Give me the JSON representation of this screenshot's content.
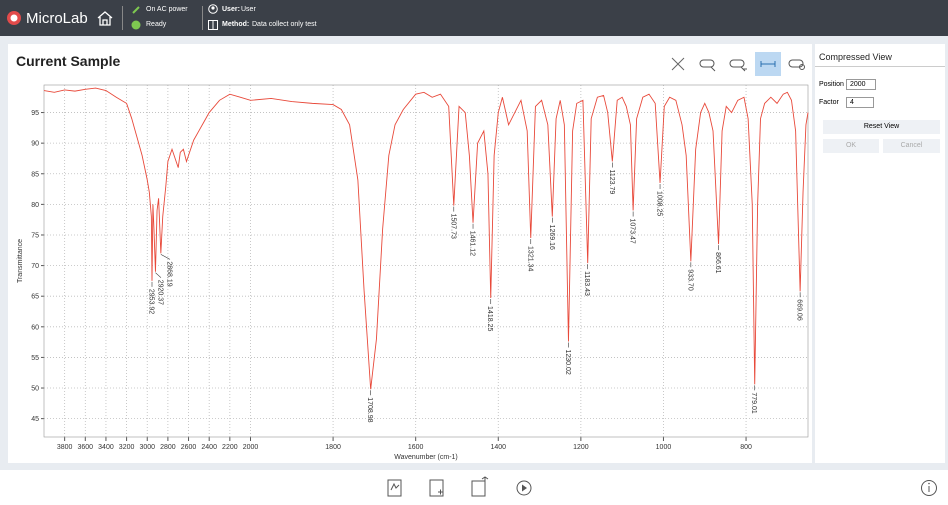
{
  "header": {
    "app": "MicroLab",
    "power": "On AC power",
    "status": "Ready",
    "user_label": "User:",
    "user": "User",
    "method_label": "Method:",
    "method": "Data collect only test"
  },
  "panel": {
    "title": "Compressed View",
    "position_label": "Position",
    "factor_label": "Factor",
    "reset": "Reset View",
    "ok": "OK",
    "cancel": "Cancel"
  },
  "chart_data": {
    "type": "line",
    "title": "Current Sample",
    "x_label": "Wavenumber (cm-1)",
    "y_label": "Transmittance",
    "compression": {
      "position": 2000,
      "factor": 4
    },
    "xlim": [
      4000,
      650
    ],
    "ylim": [
      42,
      99.5
    ],
    "xticks": [
      3800,
      3600,
      3400,
      3200,
      3000,
      2800,
      2600,
      2400,
      2200,
      2000,
      1800,
      1600,
      1400,
      1200,
      1000,
      800
    ],
    "yticks": [
      45,
      50,
      55,
      60,
      65,
      70,
      75,
      80,
      85,
      90,
      95
    ],
    "grid": true,
    "x": [
      4000,
      3900,
      3800,
      3700,
      3600,
      3500,
      3400,
      3300,
      3200,
      3150,
      3100,
      3050,
      3000,
      2980,
      2960,
      2953.92,
      2945,
      2935,
      2920.37,
      2905,
      2890,
      2868.19,
      2850,
      2820,
      2800,
      2760,
      2720,
      2700,
      2680,
      2650,
      2620,
      2600,
      2550,
      2500,
      2450,
      2400,
      2300,
      2200,
      2100,
      2000,
      1950,
      1900,
      1850,
      1800,
      1780,
      1760,
      1740,
      1725,
      1708.98,
      1695,
      1680,
      1665,
      1650,
      1630,
      1600,
      1580,
      1560,
      1540,
      1520,
      1507.73,
      1495,
      1480,
      1470,
      1461.12,
      1450,
      1435,
      1425,
      1418.25,
      1410,
      1400,
      1390,
      1375,
      1360,
      1345,
      1330,
      1321.34,
      1310,
      1295,
      1280,
      1269.16,
      1260,
      1250,
      1240,
      1230.02,
      1220,
      1210,
      1195,
      1183.43,
      1175,
      1160,
      1145,
      1135,
      1123.79,
      1112,
      1100,
      1090,
      1080,
      1073.47,
      1065,
      1050,
      1035,
      1020,
      1008.25,
      998,
      985,
      970,
      955,
      945,
      933.7,
      922,
      910,
      900,
      890,
      880,
      866.61,
      858,
      848,
      835,
      820,
      805,
      795,
      785,
      779.01,
      772,
      765,
      755,
      740,
      725,
      710,
      700,
      690,
      680,
      669.06,
      662,
      655,
      650
    ],
    "series": [
      {
        "name": "Sample",
        "color": "#e8493a",
        "values": [
          98.6,
          98.3,
          98.7,
          98.5,
          98.8,
          99,
          98.6,
          97.5,
          96.5,
          94,
          91,
          88,
          84,
          82,
          78,
          67.5,
          80,
          76,
          69,
          79,
          81,
          72,
          78,
          83,
          87,
          89,
          87,
          86,
          88.5,
          89,
          87,
          88,
          90.5,
          92,
          93.5,
          95,
          97,
          98,
          97.5,
          97,
          97.3,
          96.8,
          96.5,
          96.3,
          95.5,
          93,
          84,
          66,
          49.8,
          58,
          76,
          88,
          93,
          95.5,
          98,
          98.3,
          97.5,
          98,
          96,
          79.8,
          96,
          95,
          88,
          77,
          90,
          92,
          85,
          64.7,
          88,
          95,
          97.5,
          93,
          95,
          97,
          92,
          74.5,
          96,
          97,
          93,
          78,
          94,
          97,
          93,
          57.6,
          92,
          96.5,
          97,
          70.4,
          94,
          97.5,
          97.8,
          95,
          87,
          97,
          97.5,
          96,
          93,
          79,
          94,
          97.5,
          98,
          96.5,
          83.5,
          96,
          97.5,
          97,
          93,
          88,
          70.7,
          89,
          95,
          96.5,
          95,
          92,
          73.5,
          92,
          96,
          95,
          97,
          97.5,
          94,
          80,
          50.6,
          80,
          94,
          96.5,
          97.5,
          96.5,
          98,
          98.3,
          97,
          92,
          65.8,
          82,
          93,
          95
        ]
      }
    ],
    "annotations": [
      {
        "x": 2953.92,
        "label": "2953.92"
      },
      {
        "x": 2920.37,
        "label": "2920.37"
      },
      {
        "x": 2868.19,
        "label": "2868.19"
      },
      {
        "x": 1708.98,
        "label": "1708.98"
      },
      {
        "x": 1507.73,
        "label": "1507.73"
      },
      {
        "x": 1461.12,
        "label": "1461.12"
      },
      {
        "x": 1418.25,
        "label": "1418.25"
      },
      {
        "x": 1321.34,
        "label": "1321.34"
      },
      {
        "x": 1269.16,
        "label": "1269.16"
      },
      {
        "x": 1230.02,
        "label": "1230.02"
      },
      {
        "x": 1183.43,
        "label": "1183.43"
      },
      {
        "x": 1123.79,
        "label": "1123.79"
      },
      {
        "x": 1073.47,
        "label": "1073.47"
      },
      {
        "x": 1008.25,
        "label": "1008.25"
      },
      {
        "x": 933.7,
        "label": "933.70"
      },
      {
        "x": 866.61,
        "label": "866.61"
      },
      {
        "x": 779.01,
        "label": "779.01"
      },
      {
        "x": 669.06,
        "label": "669.06"
      }
    ]
  }
}
